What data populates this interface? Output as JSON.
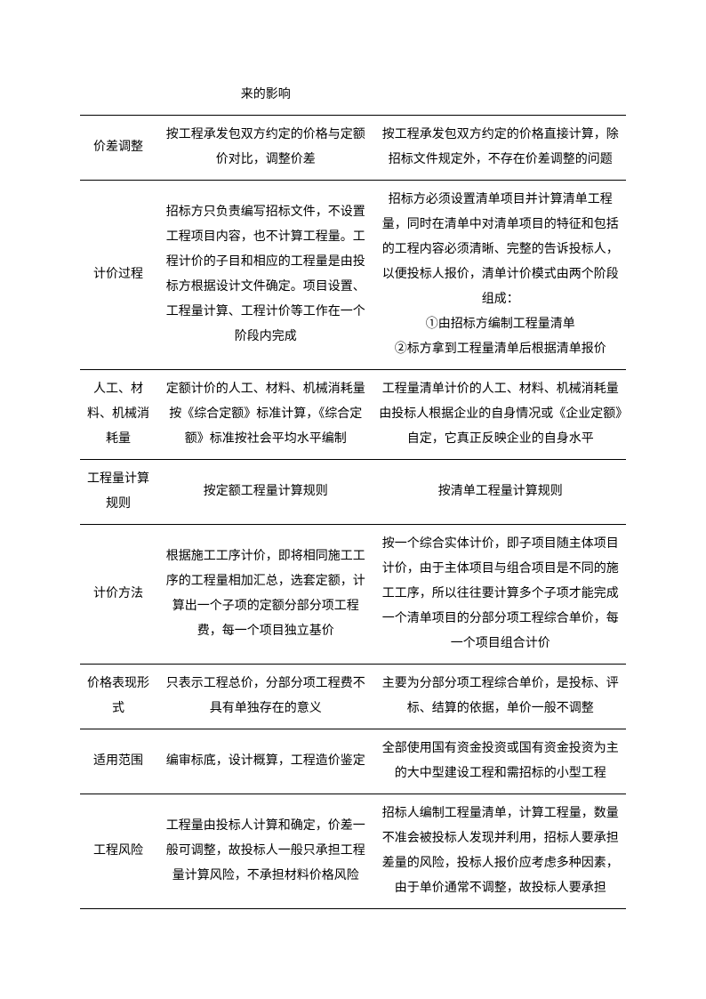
{
  "table": {
    "columns": [
      "col1",
      "col2",
      "col3"
    ],
    "fontsize": 14,
    "line_height": 2.0,
    "text_color": "#000000",
    "border_color": "#000000",
    "background_color": "#ffffff",
    "col_widths_pct": [
      14,
      40,
      46
    ],
    "rows": [
      {
        "c1": "",
        "c2": "来的影响",
        "c3": ""
      },
      {
        "c1": "价差调整",
        "c2": "按工程承发包双方约定的价格与定额价对比，调整价差",
        "c3": "按工程承发包双方约定的价格直接计算，除招标文件规定外，不存在价差调整的问题"
      },
      {
        "c1": "计价过程",
        "c2": "招标方只负责编写招标文件，不设置\n工程项目内容，也不计算工程量。工程计价的子目和相应的工程量是由投标方根据设计文件确定。项目设置、工程量计算、工程计价等工作在一个阶段内完成",
        "c3": "招标方必须设置清单项目并计算清单工程量，同时在清单中对清单项目的特征和包括的工程内容必须清晰、完整的告诉投标人，以便投标人报价，清单计价模式由两个阶段组成：\n①由招标方编制工程量清单\n②标方拿到工程量清单后根据清单报价"
      },
      {
        "c1": "人工、材料、机械消耗量",
        "c2": "定额计价的人工、材料、机械消耗量按《综合定额》标准计算，《综合定额》标准按社会平均水平编制",
        "c3": "工程量清单计价的人工、材料、机械消耗量由投标人根据企业的自身情况或《企业定额》自定，它真正反映企业的自身水平"
      },
      {
        "c1": "工程量计算规则",
        "c2": "按定额工程量计算规则",
        "c3": "按清单工程量计算规则"
      },
      {
        "c1": "计价方法",
        "c2": "根据施工工序计价，即将相同施工工序的工程量相加汇总，选套定额，计算出一个子项的定额分部分项工程费，每一个项目独立基价",
        "c3": "按一个综合实体计价，即子项目随主体项目计价，由于主体项目与组合项目是不同的施工工序，所以往往要计算多个子项才能完成一个清单项目的分部分项工程综合单价，每一个项目组合计价"
      },
      {
        "c1": "价格表现形式",
        "c2": "只表示工程总价，分部分项工程费不具有单独存在的意义",
        "c3": "主要为分部分项工程综合单价，是投标、评标、结算的依据，单价一般不调整"
      },
      {
        "c1": "适用范围",
        "c2": "编审标底，设计概算，工程造价鉴定",
        "c3": "全部使用国有资金投资或国有资金投资为主的大中型建设工程和需招标的小型工程"
      },
      {
        "c1": "工程风险",
        "c2": "工程量由投标人计算和确定，价差一般可调整，故投标人一般只承担工程量计算风险，不承担材料价格风险",
        "c3": "招标人编制工程量清单，计算工程量，数量不准会被投标人发现并利用，招标人要承担差量的风险，投标人报价应考虑多种因素，由于单价通常不调整，故投标人要承担"
      }
    ]
  }
}
